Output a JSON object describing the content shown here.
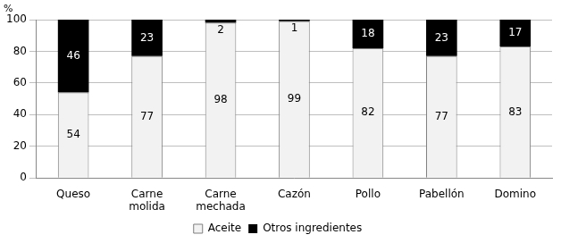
{
  "chart_data": {
    "type": "bar",
    "stacked": true,
    "ylabel": "%",
    "categories": [
      "Queso",
      "Carne molida",
      "Carne mechada",
      "Cazón",
      "Pollo",
      "Pabellón",
      "Domino"
    ],
    "series": [
      {
        "name": "Aceite",
        "color": "#f2f2f2",
        "values": [
          54,
          77,
          98,
          99,
          82,
          77,
          83
        ]
      },
      {
        "name": "Otros ingredientes",
        "color": "#000000",
        "values": [
          46,
          23,
          2,
          1,
          18,
          23,
          17
        ]
      }
    ],
    "ylim": [
      0,
      100
    ],
    "yticks": [
      0,
      20,
      40,
      60,
      80,
      100
    ],
    "grid": true,
    "legend": "bottom",
    "data_labels": true
  }
}
